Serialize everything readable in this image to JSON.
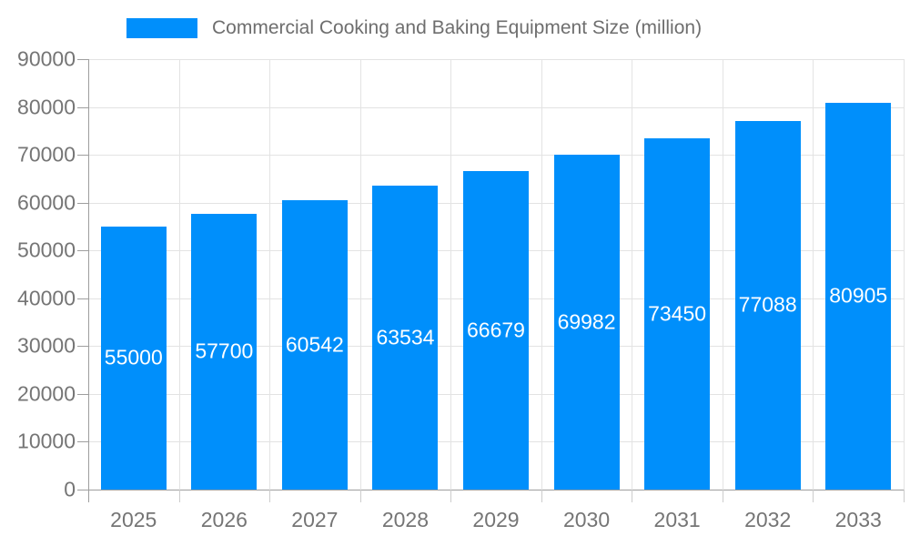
{
  "chart_data": {
    "type": "bar",
    "title": "Commercial Cooking and Baking Equipment Size (million)",
    "categories": [
      "2025",
      "2026",
      "2027",
      "2028",
      "2029",
      "2030",
      "2031",
      "2032",
      "2033"
    ],
    "values": [
      55000,
      57700,
      60542,
      63534,
      66679,
      69982,
      73450,
      77088,
      80905
    ],
    "value_labels": [
      "55000",
      "57700",
      "60542",
      "63534",
      "66679",
      "69982",
      "73450",
      "77088",
      "80905"
    ],
    "xlabel": "",
    "ylabel": "",
    "ylim": [
      0,
      90000
    ],
    "ytick_step": 10000,
    "ytick_labels": [
      "0",
      "10000",
      "20000",
      "30000",
      "40000",
      "50000",
      "60000",
      "70000",
      "80000",
      "90000"
    ],
    "grid": true,
    "legend_position": "top",
    "colors": {
      "bar": "#008FFB",
      "grid": "#e3e3e3",
      "axis": "#9e9e9e",
      "boundary_tick": "#cccccc",
      "tick_label": "#757575",
      "title": "#6e6e6e",
      "value_label": "#ffffff",
      "background": "#ffffff"
    }
  }
}
